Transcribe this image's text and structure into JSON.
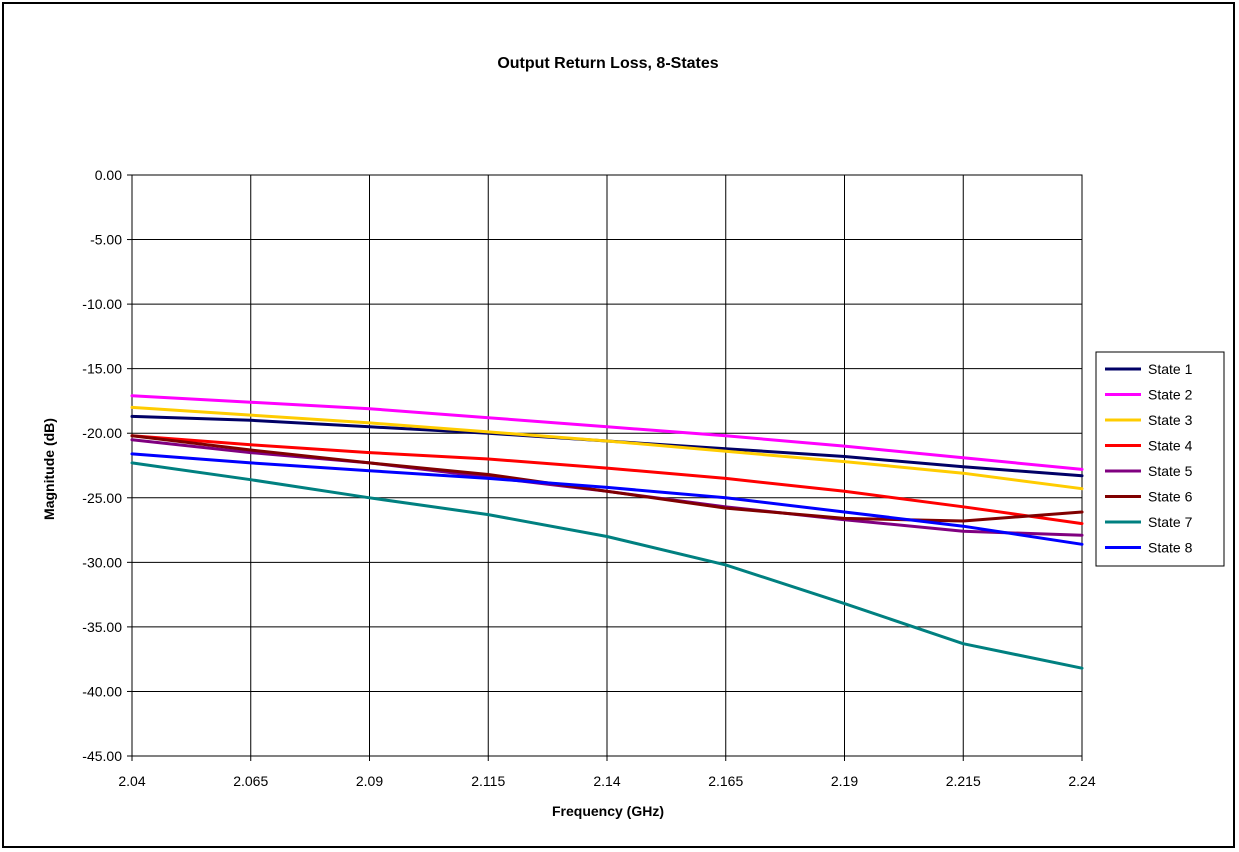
{
  "chart_data": {
    "type": "line",
    "title": "Output Return Loss, 8-States",
    "xlabel": "Frequency (GHz)",
    "ylabel": "Magnitude (dB)",
    "xlim": [
      2.04,
      2.24
    ],
    "ylim": [
      -45,
      0
    ],
    "x_ticks": [
      "2.04",
      "2.065",
      "2.09",
      "2.115",
      "2.14",
      "2.165",
      "2.19",
      "2.215",
      "2.24"
    ],
    "y_ticks": [
      "0.00",
      "-5.00",
      "-10.00",
      "-15.00",
      "-20.00",
      "-25.00",
      "-30.00",
      "-35.00",
      "-40.00",
      "-45.00"
    ],
    "grid": true,
    "legend_position": "right",
    "x": [
      2.04,
      2.065,
      2.09,
      2.115,
      2.14,
      2.165,
      2.19,
      2.215,
      2.24
    ],
    "series": [
      {
        "name": "State 1",
        "color": "#000066",
        "values": [
          -18.7,
          -19.0,
          -19.5,
          -20.0,
          -20.6,
          -21.2,
          -21.8,
          -22.6,
          -23.3
        ]
      },
      {
        "name": "State 2",
        "color": "#ff00ff",
        "values": [
          -17.1,
          -17.6,
          -18.1,
          -18.8,
          -19.5,
          -20.2,
          -21.0,
          -21.9,
          -22.8
        ]
      },
      {
        "name": "State 3",
        "color": "#ffcc00",
        "values": [
          -18.0,
          -18.6,
          -19.2,
          -19.9,
          -20.6,
          -21.4,
          -22.2,
          -23.1,
          -24.3
        ]
      },
      {
        "name": "State 4",
        "color": "#ff0000",
        "values": [
          -20.2,
          -20.9,
          -21.5,
          -22.0,
          -22.7,
          -23.5,
          -24.5,
          -25.7,
          -27.0
        ]
      },
      {
        "name": "State 5",
        "color": "#800080",
        "values": [
          -20.5,
          -21.5,
          -22.3,
          -23.4,
          -24.5,
          -25.7,
          -26.7,
          -27.6,
          -27.9
        ]
      },
      {
        "name": "State 6",
        "color": "#800000",
        "values": [
          -20.2,
          -21.3,
          -22.3,
          -23.2,
          -24.5,
          -25.8,
          -26.6,
          -26.8,
          -26.1
        ]
      },
      {
        "name": "State 7",
        "color": "#008080",
        "values": [
          -22.3,
          -23.6,
          -25.0,
          -26.3,
          -28.0,
          -30.2,
          -33.2,
          -36.3,
          -38.2
        ]
      },
      {
        "name": "State 8",
        "color": "#0000ff",
        "values": [
          -21.6,
          -22.3,
          -22.9,
          -23.5,
          -24.2,
          -25.0,
          -26.1,
          -27.2,
          -28.6
        ]
      }
    ]
  }
}
